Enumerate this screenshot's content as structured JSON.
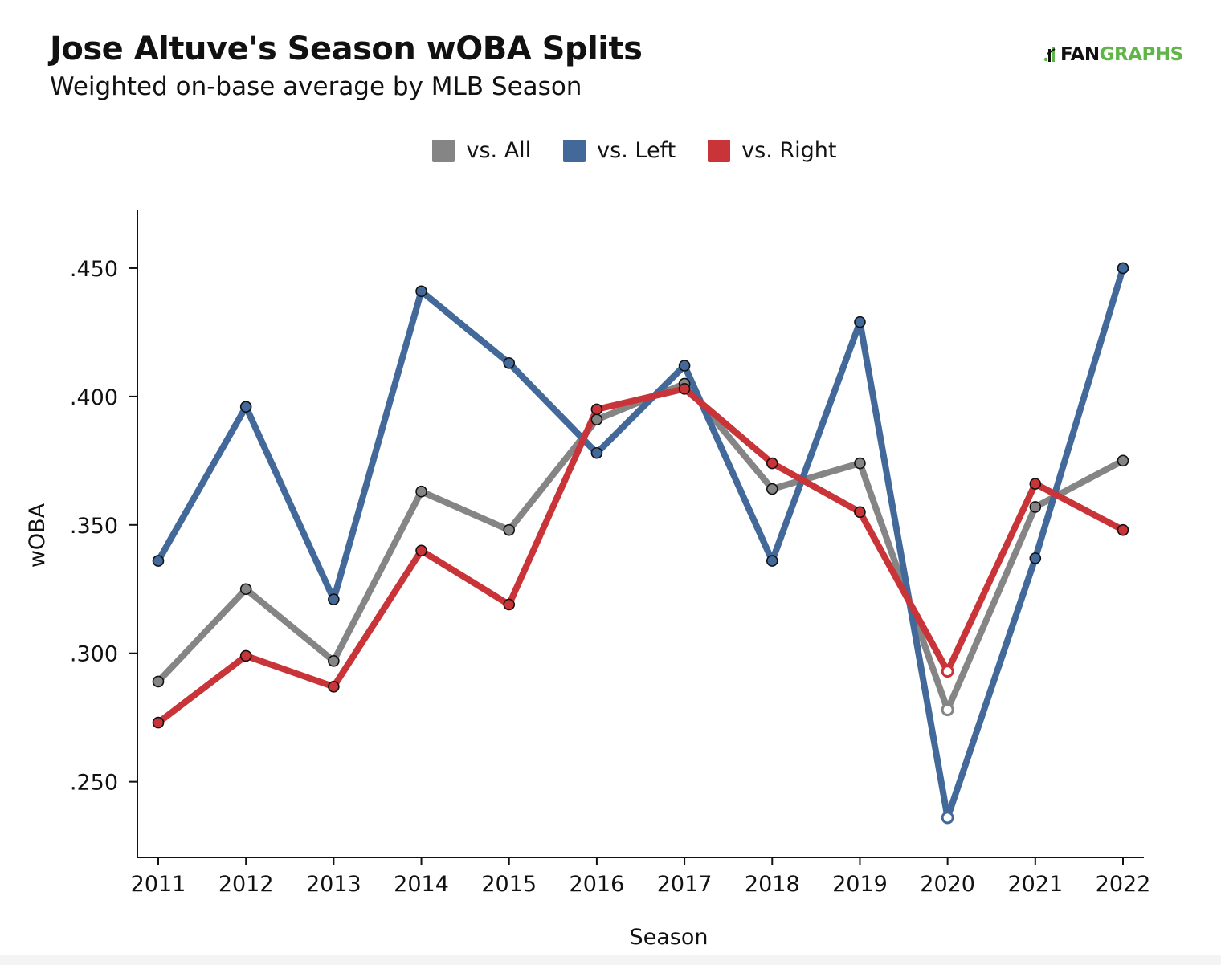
{
  "header": {
    "title": "Jose Altuve's Season wOBA Splits",
    "subtitle": "Weighted on-base average by MLB Season"
  },
  "logo": {
    "part1": "FAN",
    "part2": "GRAPHS",
    "accent_color": "#5fb548"
  },
  "chart_data": {
    "type": "line",
    "x": [
      2011,
      2012,
      2013,
      2014,
      2015,
      2016,
      2017,
      2018,
      2019,
      2020,
      2021,
      2022
    ],
    "x_tick_labels": [
      "2011",
      "2012",
      "2013",
      "2014",
      "2015",
      "2016",
      "2017",
      "2018",
      "2019",
      "2020",
      "2021",
      "2022"
    ],
    "series": [
      {
        "name": "vs. All",
        "color": "#858585",
        "values": [
          0.289,
          0.325,
          0.297,
          0.363,
          0.348,
          0.391,
          0.405,
          0.364,
          0.374,
          0.278,
          0.357,
          0.375
        ]
      },
      {
        "name": "vs. Left",
        "color": "#42699a",
        "values": [
          0.336,
          0.396,
          0.321,
          0.441,
          0.413,
          0.378,
          0.412,
          0.336,
          0.429,
          0.236,
          0.337,
          0.45
        ]
      },
      {
        "name": "vs. Right",
        "color": "#c83438",
        "values": [
          0.273,
          0.299,
          0.287,
          0.34,
          0.319,
          0.395,
          0.403,
          0.374,
          0.355,
          0.293,
          0.366,
          0.348
        ]
      }
    ],
    "hollow_markers_x": [
      2020
    ],
    "xlabel": "Season",
    "ylabel": "wOBA",
    "ylim": [
      0.2205,
      0.4725
    ],
    "y_ticks": [
      0.25,
      0.3,
      0.35,
      0.4,
      0.45
    ],
    "y_tick_labels": [
      ".250",
      ".300",
      ".350",
      ".400",
      ".450"
    ],
    "grid": false,
    "legend_position": "top-center"
  }
}
